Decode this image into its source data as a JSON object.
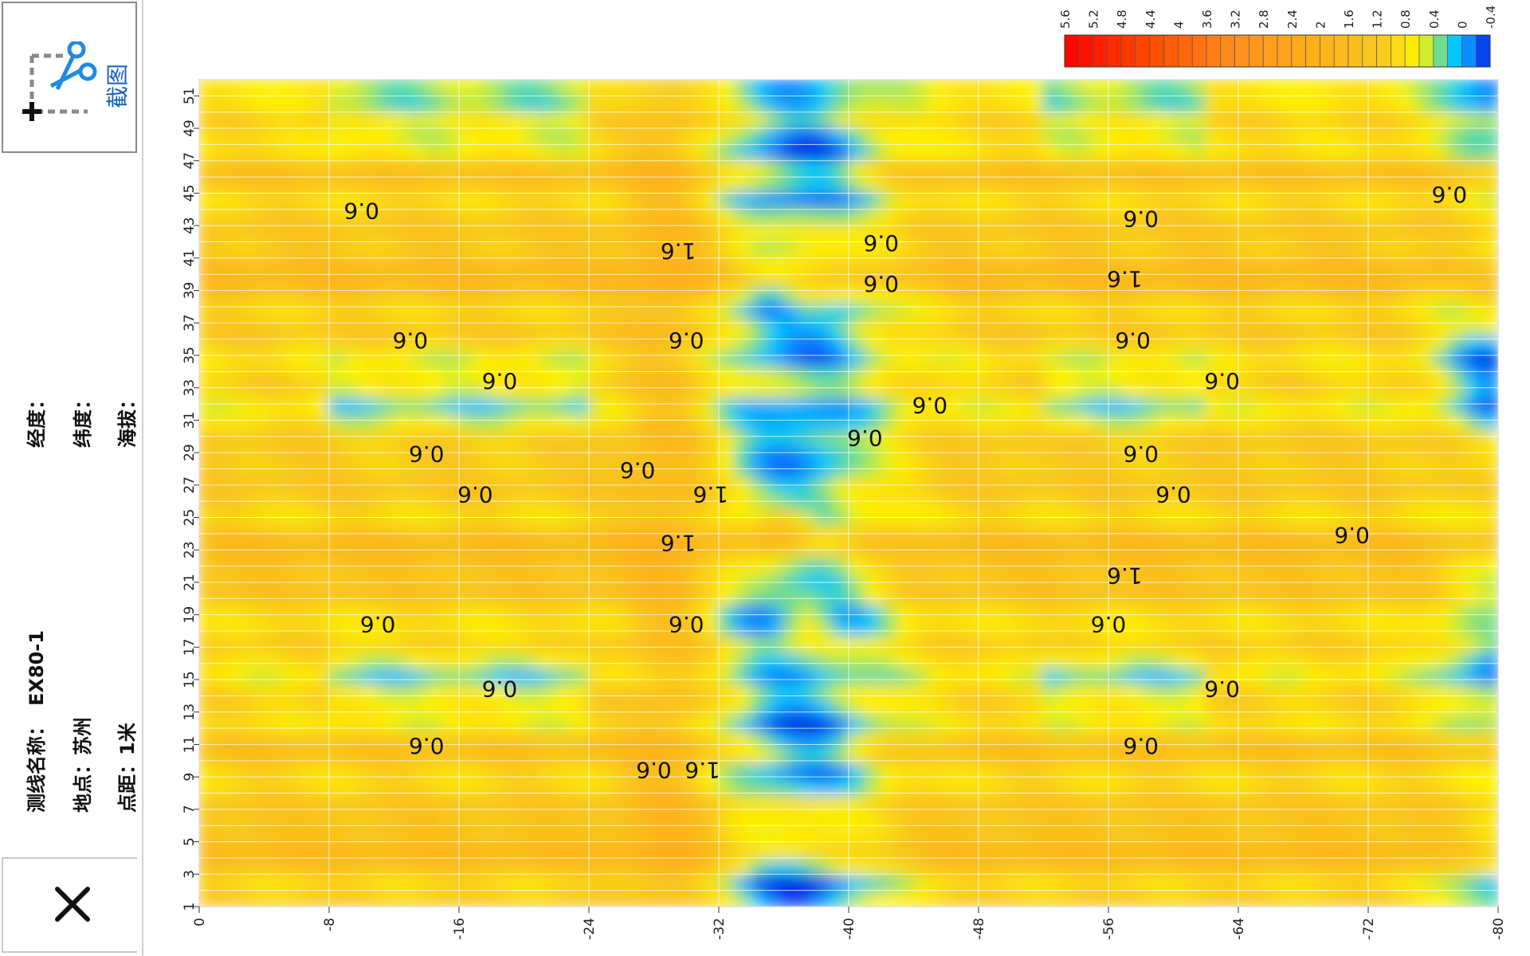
{
  "panel": {
    "screenshot_label": "截图",
    "line_name_label": "测线名称：",
    "line_name_value": "EX80-1",
    "location_label": "地点：",
    "location_value": "苏州",
    "spacing_label": "点距：",
    "spacing_value": "1米",
    "longitude_label": "经度：",
    "latitude_label": "纬度：",
    "altitude_label": "海拔："
  },
  "icons": {
    "screenshot": "scissors-crop-icon",
    "close": "close-icon"
  },
  "chart_data": {
    "type": "heatmap",
    "x_ticks": [
      0,
      -8,
      -16,
      -24,
      -32,
      -40,
      -48,
      -56,
      -64,
      -72,
      -80
    ],
    "y_ticks": [
      1,
      3,
      5,
      7,
      9,
      11,
      13,
      15,
      17,
      19,
      21,
      23,
      25,
      27,
      29,
      31,
      33,
      35,
      37,
      39,
      41,
      43,
      45,
      47,
      49,
      51
    ],
    "xlim": [
      0,
      -80
    ],
    "ylim": [
      1,
      52
    ],
    "colorbar": {
      "ticks": [
        5.6,
        5.2,
        4.8,
        4.4,
        4,
        3.6,
        3.2,
        2.8,
        2.4,
        2,
        1.6,
        1.2,
        0.8,
        0.4,
        0,
        -0.4
      ],
      "range": [
        5.6,
        -0.4
      ],
      "stops": [
        {
          "value": 5.6,
          "color": "#ff0000"
        },
        {
          "value": 4.4,
          "color": "#ff4a00"
        },
        {
          "value": 3.2,
          "color": "#ff8f1f"
        },
        {
          "value": 2.0,
          "color": "#ffb21a"
        },
        {
          "value": 1.2,
          "color": "#f7c620"
        },
        {
          "value": 0.6,
          "color": "#fff200"
        },
        {
          "value": 0.4,
          "color": "#a8e65a"
        },
        {
          "value": 0.1,
          "color": "#00c8ff"
        },
        {
          "value": -0.2,
          "color": "#1070ff"
        },
        {
          "value": -0.4,
          "color": "#0018e0"
        }
      ]
    },
    "contour_labels": [
      {
        "text": "0.6",
        "x": -10,
        "y": 44
      },
      {
        "text": "0.6",
        "x": -77,
        "y": 45,
        "note": ""
      },
      {
        "text": "0.6",
        "x": -58,
        "y": 43.5
      },
      {
        "text": "0.6",
        "x": -42,
        "y": 42
      },
      {
        "text": "1.6",
        "x": -57,
        "y": 39.8
      },
      {
        "text": "0.6",
        "x": -42,
        "y": 39.5
      },
      {
        "text": "1.6",
        "x": -29.5,
        "y": 41.5
      },
      {
        "text": "0.6",
        "x": -13,
        "y": 36
      },
      {
        "text": "0.6",
        "x": -30,
        "y": 36
      },
      {
        "text": "0.6",
        "x": -57.5,
        "y": 36
      },
      {
        "text": "0.6",
        "x": -18.5,
        "y": 33.5
      },
      {
        "text": "0.6",
        "x": -63,
        "y": 33.5
      },
      {
        "text": "0.6",
        "x": -45,
        "y": 32
      },
      {
        "text": "0.6",
        "x": -41,
        "y": 30
      },
      {
        "text": "0.6",
        "x": -14,
        "y": 29
      },
      {
        "text": "0.6",
        "x": -58,
        "y": 29
      },
      {
        "text": "0.6",
        "x": -27,
        "y": 28
      },
      {
        "text": "0.6",
        "x": -17,
        "y": 26.5
      },
      {
        "text": "0.6",
        "x": -60,
        "y": 26.5
      },
      {
        "text": "1.6",
        "x": -31.5,
        "y": 26.5
      },
      {
        "text": "0.6",
        "x": -71,
        "y": 24
      },
      {
        "text": "1.6",
        "x": -29.5,
        "y": 23.5
      },
      {
        "text": "1.6",
        "x": -57,
        "y": 21.5
      },
      {
        "text": "0.6",
        "x": -11,
        "y": 18.5
      },
      {
        "text": "0.6",
        "x": -30,
        "y": 18.5
      },
      {
        "text": "0.6",
        "x": -56,
        "y": 18.5
      },
      {
        "text": "0.6",
        "x": -18.5,
        "y": 14.5
      },
      {
        "text": "0.6",
        "x": -63,
        "y": 14.5
      },
      {
        "text": "0.6",
        "x": -14,
        "y": 11
      },
      {
        "text": "0.6",
        "x": -58,
        "y": 11
      },
      {
        "text": "0.6",
        "x": -28,
        "y": 9.5
      },
      {
        "text": "1.6",
        "x": -31,
        "y": 9.5
      }
    ]
  }
}
